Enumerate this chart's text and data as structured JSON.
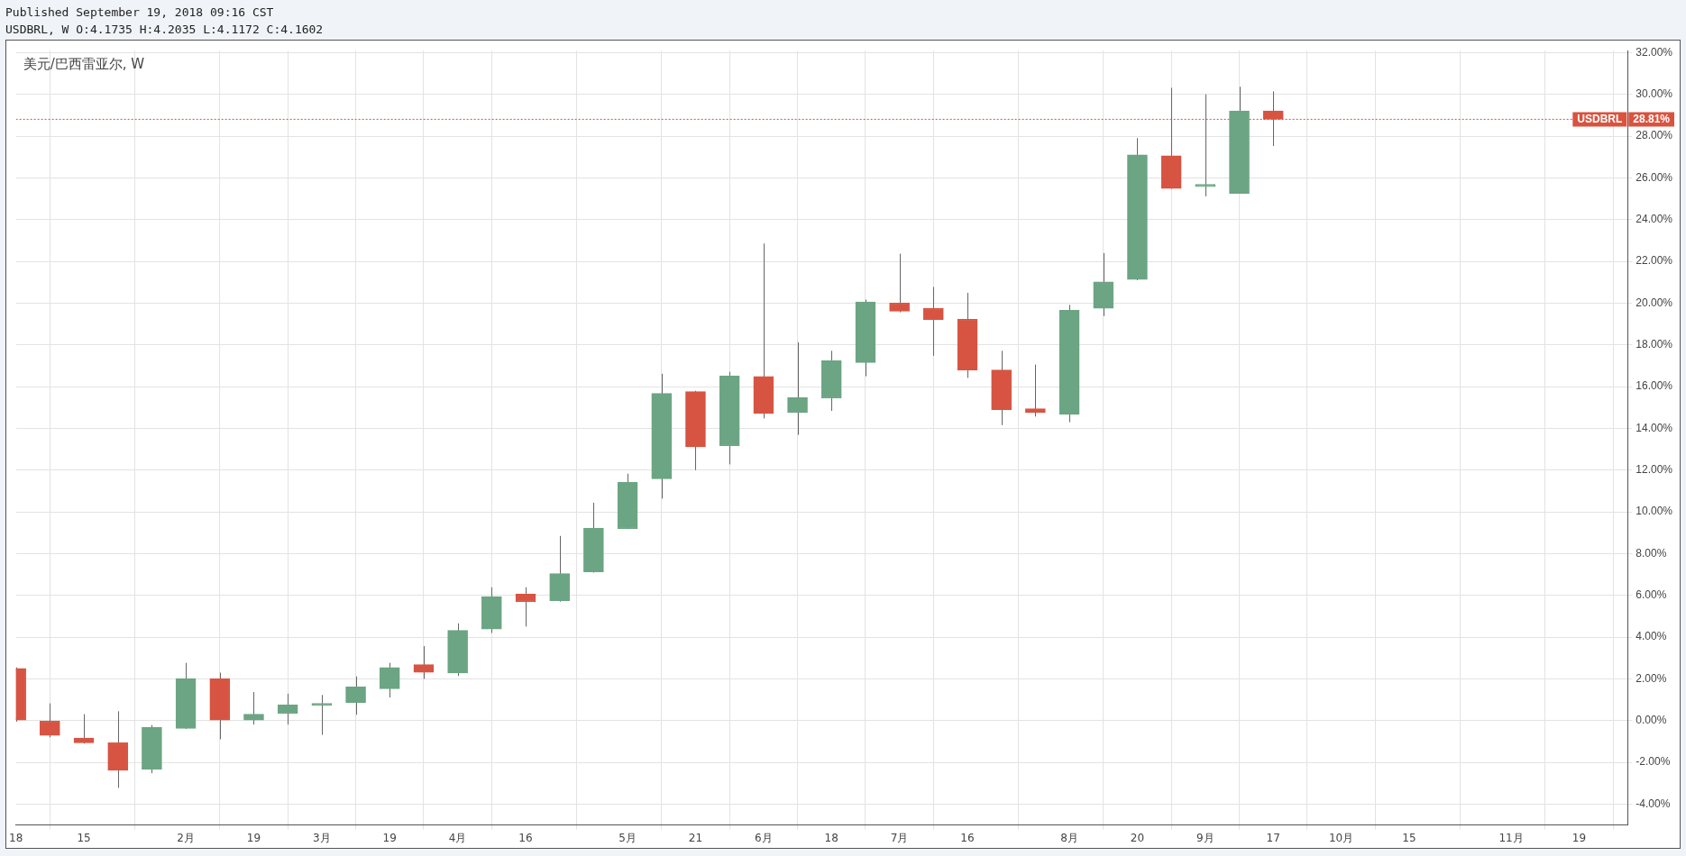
{
  "chart_data": {
    "type": "candlestick",
    "title": "Published September 19, 2018 09:16 CST",
    "subtitle": "USDBRL, W O:4.1735 H:4.2035 L:4.1172 C:4.1602",
    "annotations": [
      "美元/巴西雷亚尔, W",
      "28.81%"
    ],
    "x": [
      "2018-01-01",
      "2018-01-08",
      "2018-01-15",
      "2018-01-22",
      "2018-01-29",
      "2018-02-05",
      "2018-02-12",
      "2018-02-19",
      "2018-02-26",
      "2018-03-05",
      "2018-03-12",
      "2018-03-19",
      "2018-03-26",
      "2018-04-02",
      "2018-04-09",
      "2018-04-16",
      "2018-04-23",
      "2018-04-30",
      "2018-05-07",
      "2018-05-14",
      "2018-05-21",
      "2018-05-28",
      "2018-06-04",
      "2018-06-11",
      "2018-06-18",
      "2018-06-25",
      "2018-07-02",
      "2018-07-09",
      "2018-07-16",
      "2018-07-23",
      "2018-07-30",
      "2018-08-06",
      "2018-08-13",
      "2018-08-20",
      "2018-08-27",
      "2018-09-03",
      "2018-09-10",
      "2018-09-17"
    ],
    "ohlc": [
      [
        2.5,
        2.55,
        -0.05,
        0.0
      ],
      [
        0.0,
        0.83,
        -0.8,
        -0.71
      ],
      [
        -0.83,
        0.31,
        -1.1,
        -1.06
      ],
      [
        -1.06,
        0.45,
        -3.22,
        -2.38
      ],
      [
        -2.33,
        -0.21,
        -2.52,
        -0.31
      ],
      [
        -0.37,
        2.77,
        -0.4,
        2.02
      ],
      [
        2.02,
        2.3,
        -0.89,
        0.03
      ],
      [
        0.03,
        1.37,
        -0.19,
        0.31
      ],
      [
        0.35,
        1.29,
        -0.19,
        0.75
      ],
      [
        0.74,
        1.23,
        -0.68,
        0.77
      ],
      [
        0.87,
        2.12,
        0.28,
        1.62
      ],
      [
        1.53,
        2.77,
        1.11,
        2.54
      ],
      [
        2.68,
        3.57,
        2.0,
        2.31
      ],
      [
        2.28,
        4.66,
        2.14,
        4.33
      ],
      [
        4.39,
        6.39,
        4.2,
        5.94
      ],
      [
        6.06,
        6.39,
        4.51,
        5.7
      ],
      [
        5.75,
        8.85,
        5.7,
        7.04
      ],
      [
        7.13,
        10.44,
        7.09,
        9.23
      ],
      [
        9.2,
        11.83,
        9.18,
        11.43
      ],
      [
        11.58,
        16.62,
        10.64,
        15.68
      ],
      [
        15.77,
        15.8,
        12.0,
        13.12
      ],
      [
        13.17,
        16.71,
        12.28,
        16.52
      ],
      [
        16.49,
        22.86,
        14.48,
        14.71
      ],
      [
        14.76,
        18.13,
        13.69,
        15.47
      ],
      [
        15.46,
        17.72,
        14.84,
        17.24
      ],
      [
        17.15,
        20.17,
        16.5,
        20.06
      ],
      [
        20.01,
        22.37,
        19.56,
        19.61
      ],
      [
        19.75,
        20.78,
        17.48,
        19.21
      ],
      [
        19.23,
        20.5,
        16.42,
        16.8
      ],
      [
        16.8,
        17.72,
        14.16,
        14.9
      ],
      [
        14.95,
        17.06,
        14.57,
        14.76
      ],
      [
        14.67,
        19.92,
        14.3,
        19.66
      ],
      [
        19.75,
        22.4,
        19.38,
        21.02
      ],
      [
        21.14,
        27.91,
        21.1,
        27.11
      ],
      [
        27.06,
        30.32,
        25.48,
        25.5
      ],
      [
        25.58,
        30.01,
        25.12,
        25.69
      ],
      [
        25.26,
        30.37,
        25.24,
        29.21
      ],
      [
        29.21,
        30.15,
        27.53,
        28.81
      ]
    ],
    "colors": [
      "#d75442",
      "#d75442",
      "#d75442",
      "#d75442",
      "#6ba583",
      "#6ba583",
      "#d75442",
      "#6ba583",
      "#6ba583",
      "#6ba583",
      "#6ba583",
      "#6ba583",
      "#d75442",
      "#6ba583",
      "#6ba583",
      "#d75442",
      "#6ba583",
      "#6ba583",
      "#6ba583",
      "#6ba583",
      "#d75442",
      "#6ba583",
      "#d75442",
      "#6ba583",
      "#6ba583",
      "#6ba583",
      "#d75442",
      "#d75442",
      "#d75442",
      "#d75442",
      "#d75442",
      "#6ba583",
      "#6ba583",
      "#6ba583",
      "#d75442",
      "#6ba583",
      "#6ba583",
      "#d75442"
    ],
    "xlim": [
      "2018-01-01",
      "2018-11-29"
    ],
    "xticks": [
      {
        "value": "2018-01-01",
        "label": "18"
      },
      {
        "value": "2018-01-15",
        "label": "15"
      },
      {
        "value": "2018-02-05",
        "label": "2月"
      },
      {
        "value": "2018-02-19",
        "label": "19"
      },
      {
        "value": "2018-03-05",
        "label": "3月"
      },
      {
        "value": "2018-03-19",
        "label": "19"
      },
      {
        "value": "2018-04-02",
        "label": "4月"
      },
      {
        "value": "2018-04-16",
        "label": "16"
      },
      {
        "value": "2018-05-07",
        "label": "5月"
      },
      {
        "value": "2018-05-21",
        "label": "21"
      },
      {
        "value": "2018-06-04",
        "label": "6月"
      },
      {
        "value": "2018-06-18",
        "label": "18"
      },
      {
        "value": "2018-07-02",
        "label": "7月"
      },
      {
        "value": "2018-07-16",
        "label": "16"
      },
      {
        "value": "2018-08-06",
        "label": "8月"
      },
      {
        "value": "2018-08-20",
        "label": "20"
      },
      {
        "value": "2018-09-03",
        "label": "9月"
      },
      {
        "value": "2018-09-17",
        "label": "17"
      },
      {
        "value": "2018-10-01",
        "label": "10月"
      },
      {
        "value": "2018-10-15",
        "label": "15"
      },
      {
        "value": "2018-11-05",
        "label": "11月"
      },
      {
        "value": "2018-11-19",
        "label": "19"
      }
    ],
    "ylim": [
      -5,
      32.1
    ],
    "yticks": [
      {
        "value": -4,
        "label": "-4.00%"
      },
      {
        "value": -2,
        "label": "-2.00%"
      },
      {
        "value": 0,
        "label": "0.00%"
      },
      {
        "value": 2,
        "label": "2.00%"
      },
      {
        "value": 4,
        "label": "4.00%"
      },
      {
        "value": 6,
        "label": "6.00%"
      },
      {
        "value": 8,
        "label": "8.00%"
      },
      {
        "value": 10,
        "label": "10.00%"
      },
      {
        "value": 12,
        "label": "12.00%"
      },
      {
        "value": 14,
        "label": "14.00%"
      },
      {
        "value": 16,
        "label": "16.00%"
      },
      {
        "value": 18,
        "label": "18.00%"
      },
      {
        "value": 20,
        "label": "20.00%"
      },
      {
        "value": 22,
        "label": "22.00%"
      },
      {
        "value": 24,
        "label": "24.00%"
      },
      {
        "value": 26,
        "label": "26.00%"
      },
      {
        "value": 28,
        "label": "28.00%"
      },
      {
        "value": 30,
        "label": "30.00%"
      },
      {
        "value": 32,
        "label": "32.00%"
      }
    ],
    "ref_lines": [
      {
        "axis": "y",
        "value": 28.81,
        "label": "USDBRL",
        "color": "#d9533f",
        "line_style": "dotted"
      }
    ],
    "grid": true,
    "legend": false
  }
}
